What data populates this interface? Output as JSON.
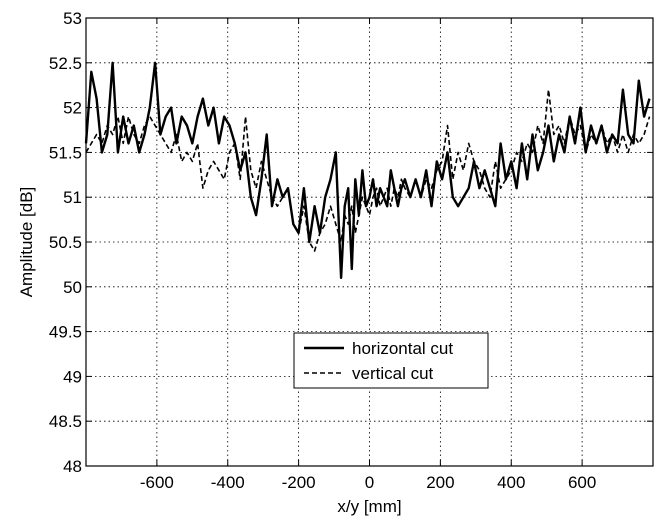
{
  "chart_data": {
    "type": "line",
    "title": "",
    "xlabel": "x/y [mm]",
    "ylabel": "Amplitude [dB]",
    "xlim": [
      -800,
      800
    ],
    "ylim": [
      48,
      53
    ],
    "xticks": [
      -600,
      -400,
      -200,
      0,
      200,
      400,
      600
    ],
    "yticks": [
      48,
      48.5,
      49,
      49.5,
      50,
      50.5,
      51,
      51.5,
      52,
      52.5,
      53
    ],
    "grid": true,
    "legend_position": "lower-center",
    "series": [
      {
        "name": "horizontal cut",
        "style": "solid",
        "x": [
          -800,
          -785,
          -770,
          -755,
          -740,
          -725,
          -710,
          -695,
          -680,
          -665,
          -650,
          -635,
          -620,
          -605,
          -590,
          -575,
          -560,
          -545,
          -530,
          -515,
          -500,
          -485,
          -470,
          -455,
          -440,
          -425,
          -410,
          -395,
          -380,
          -365,
          -350,
          -335,
          -320,
          -305,
          -290,
          -275,
          -260,
          -245,
          -230,
          -215,
          -200,
          -185,
          -170,
          -155,
          -140,
          -125,
          -110,
          -95,
          -80,
          -70,
          -60,
          -50,
          -40,
          -30,
          -20,
          -10,
          0,
          10,
          20,
          30,
          40,
          50,
          60,
          70,
          80,
          90,
          100,
          115,
          130,
          145,
          160,
          175,
          190,
          205,
          220,
          235,
          250,
          265,
          280,
          295,
          310,
          325,
          340,
          355,
          370,
          385,
          400,
          415,
          430,
          445,
          460,
          475,
          490,
          505,
          520,
          535,
          550,
          565,
          580,
          595,
          610,
          625,
          640,
          655,
          670,
          685,
          700,
          715,
          730,
          745,
          760,
          775,
          790
        ],
        "y": [
          51.6,
          52.4,
          52.1,
          51.5,
          51.7,
          52.5,
          51.5,
          51.9,
          51.6,
          51.8,
          51.5,
          51.7,
          52.0,
          52.5,
          51.7,
          51.9,
          52.0,
          51.6,
          51.9,
          51.8,
          51.6,
          51.9,
          52.1,
          51.8,
          52.0,
          51.6,
          51.9,
          51.8,
          51.6,
          51.3,
          51.5,
          51.0,
          50.8,
          51.2,
          51.7,
          50.9,
          51.2,
          51.0,
          51.1,
          50.7,
          50.6,
          51.1,
          50.5,
          50.9,
          50.6,
          51.0,
          51.2,
          51.5,
          50.1,
          50.9,
          51.1,
          50.2,
          51.2,
          50.8,
          51.3,
          50.9,
          51.0,
          51.2,
          50.9,
          51.1,
          51.0,
          50.9,
          51.3,
          51.1,
          50.9,
          51.1,
          51.2,
          51.0,
          51.2,
          51.0,
          51.3,
          50.9,
          51.4,
          51.2,
          51.5,
          51.0,
          50.9,
          51.0,
          51.1,
          51.4,
          51.1,
          51.3,
          51.1,
          50.9,
          51.6,
          51.2,
          51.4,
          51.1,
          51.6,
          51.2,
          51.7,
          51.3,
          51.5,
          51.8,
          51.4,
          51.7,
          51.5,
          51.9,
          51.6,
          52.0,
          51.5,
          51.8,
          51.6,
          51.8,
          51.5,
          51.7,
          51.6,
          52.2,
          51.7,
          51.6,
          52.3,
          51.9,
          52.1
        ]
      },
      {
        "name": "vertical cut",
        "style": "dashed",
        "x": [
          -800,
          -785,
          -770,
          -755,
          -740,
          -725,
          -710,
          -695,
          -680,
          -665,
          -650,
          -635,
          -620,
          -605,
          -590,
          -575,
          -560,
          -545,
          -530,
          -515,
          -500,
          -485,
          -470,
          -455,
          -440,
          -425,
          -410,
          -395,
          -380,
          -365,
          -350,
          -335,
          -320,
          -305,
          -290,
          -275,
          -260,
          -245,
          -230,
          -215,
          -200,
          -185,
          -170,
          -155,
          -140,
          -125,
          -110,
          -95,
          -80,
          -70,
          -60,
          -50,
          -40,
          -30,
          -20,
          -10,
          0,
          10,
          20,
          30,
          40,
          50,
          60,
          70,
          80,
          90,
          100,
          115,
          130,
          145,
          160,
          175,
          190,
          205,
          220,
          235,
          250,
          265,
          280,
          295,
          310,
          325,
          340,
          355,
          370,
          385,
          400,
          415,
          430,
          445,
          460,
          475,
          490,
          505,
          520,
          535,
          550,
          565,
          580,
          595,
          610,
          625,
          640,
          655,
          670,
          685,
          700,
          715,
          730,
          745,
          760,
          775,
          790
        ],
        "y": [
          51.5,
          51.6,
          51.7,
          51.6,
          51.8,
          51.7,
          51.9,
          51.6,
          51.9,
          51.7,
          51.6,
          51.8,
          51.9,
          51.8,
          51.7,
          51.6,
          51.5,
          51.7,
          51.4,
          51.5,
          51.4,
          51.6,
          51.1,
          51.3,
          51.4,
          51.3,
          51.2,
          51.5,
          51.6,
          51.2,
          51.9,
          51.3,
          51.1,
          51.4,
          51.2,
          51.0,
          50.9,
          51.0,
          51.1,
          50.7,
          50.6,
          50.9,
          50.5,
          50.4,
          50.6,
          50.7,
          50.9,
          50.7,
          50.5,
          50.8,
          50.7,
          50.9,
          50.6,
          50.8,
          51.0,
          50.9,
          50.8,
          51.0,
          51.1,
          50.9,
          51.0,
          51.1,
          50.9,
          51.1,
          51.0,
          51.2,
          51.1,
          51.0,
          51.2,
          51.0,
          51.2,
          51.1,
          51.3,
          51.4,
          51.8,
          51.2,
          51.5,
          51.3,
          51.6,
          51.4,
          51.3,
          51.1,
          51.0,
          51.4,
          51.1,
          51.2,
          51.3,
          51.5,
          51.4,
          51.6,
          51.5,
          51.8,
          51.6,
          52.2,
          51.7,
          51.8,
          51.6,
          51.9,
          51.7,
          51.8,
          51.5,
          51.7,
          51.6,
          51.8,
          51.6,
          51.7,
          51.5,
          51.7,
          51.5,
          51.7,
          51.6,
          51.7,
          51.9
        ]
      }
    ]
  }
}
